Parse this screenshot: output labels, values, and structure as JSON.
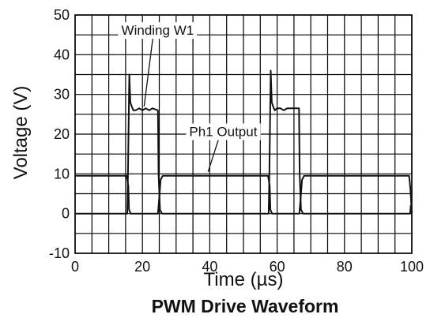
{
  "chart_data": {
    "type": "line",
    "title": "PWM Drive Waveform",
    "xlabel": "Time (µs)",
    "ylabel": "Voltage (V)",
    "xlim": [
      0,
      100
    ],
    "ylim": [
      -10,
      50
    ],
    "x_ticks": [
      "0",
      "20",
      "40",
      "60",
      "80",
      "100"
    ],
    "y_ticks": [
      "50",
      "40",
      "30",
      "20",
      "10",
      "0",
      "-10"
    ],
    "grid": true,
    "series": [
      {
        "name": "Winding W1",
        "x": [
          0,
          15.5,
          15.7,
          16.1,
          16.4,
          16.8,
          17.3,
          18,
          19,
          20,
          21,
          22,
          23,
          24.6,
          24.8,
          25.2,
          25.8,
          30,
          40,
          50,
          57.5,
          57.7,
          58.1,
          58.4,
          58.8,
          59.3,
          60,
          61,
          62,
          63,
          64,
          65,
          66.5,
          66.7,
          67.1,
          67.7,
          75,
          85,
          95,
          99.5,
          99.7,
          100
        ],
        "y": [
          0,
          0,
          10,
          35,
          28,
          27,
          26,
          26,
          26.5,
          26,
          26.5,
          26,
          26.5,
          26,
          10,
          1,
          0,
          0,
          0,
          0,
          0,
          10,
          36,
          28,
          27,
          26,
          26.5,
          26.5,
          26,
          26.5,
          26.5,
          26.5,
          26.5,
          10,
          1,
          0,
          0,
          0,
          0,
          0,
          2,
          0
        ]
      },
      {
        "name": "Ph1 Output",
        "x": [
          0,
          15,
          15.3,
          15.8,
          16,
          16.5,
          20,
          24,
          24.6,
          25,
          25.4,
          26,
          30,
          40,
          50,
          57,
          57.3,
          57.8,
          58,
          58.5,
          62,
          66.2,
          66.6,
          67,
          67.4,
          68,
          75,
          85,
          95,
          99.2,
          99.6,
          100
        ],
        "y": [
          9.5,
          9.5,
          9.5,
          7,
          1,
          0,
          0,
          0,
          0,
          4,
          8.5,
          9.5,
          9.5,
          9.5,
          9.5,
          9.5,
          9.5,
          7,
          1,
          0,
          0,
          0,
          0,
          4,
          8.5,
          9.5,
          9.5,
          9.5,
          9.5,
          9.5,
          6,
          0
        ]
      }
    ],
    "annotations": [
      {
        "text": "Winding W1",
        "x": 24.5,
        "y": 45,
        "target_x": 20.5,
        "target_y": 27
      },
      {
        "text": "Ph1 Output",
        "x": 44,
        "y": 19.5,
        "target_x": 39.5,
        "target_y": 10.5
      }
    ]
  }
}
